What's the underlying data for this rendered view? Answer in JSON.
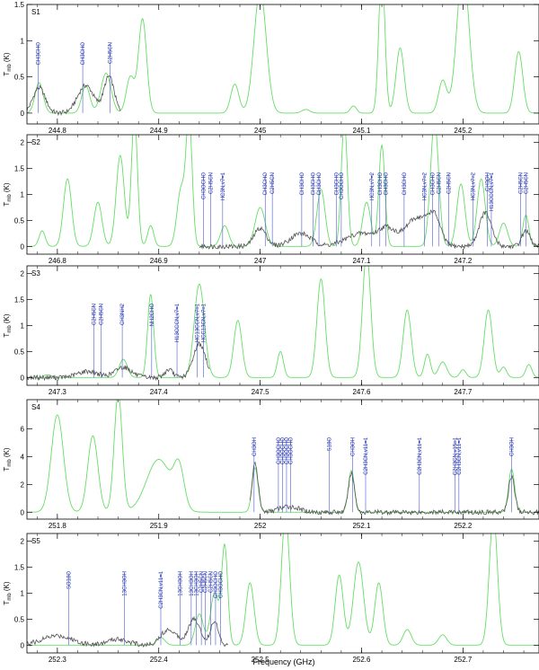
{
  "figure": {
    "xlabel": "Frequency (GHz)",
    "ylabel_main": "T",
    "ylabel_sub": "mb",
    "ylabel_unit": "(K)",
    "colors": {
      "observed": "#555555",
      "model": "#66dd66",
      "line_marker": "#4a5bc8",
      "label": "#2030b0",
      "axis": "#000000"
    }
  },
  "chart_data": [
    {
      "type": "line",
      "panel": "S1",
      "xlim": [
        244.77,
        245.275
      ],
      "ylim": [
        -0.15,
        1.5
      ],
      "xticks": [
        244.8,
        244.9,
        245,
        245.1,
        245.2
      ],
      "xtick_labels": [
        "244.8",
        "244.9",
        "245",
        "245.1",
        "245.2"
      ],
      "yticks": [
        0,
        0.5,
        1,
        1.5
      ],
      "ytick_labels": [
        "0",
        "0.5",
        "1",
        "1.5"
      ],
      "obs_range": [
        244.77,
        244.862
      ],
      "model_peaks": [
        [
          244.782,
          0.42,
          0.004
        ],
        [
          244.828,
          0.38,
          0.004
        ],
        [
          244.848,
          0.55,
          0.005
        ],
        [
          244.872,
          0.5,
          0.004
        ],
        [
          244.884,
          1.3,
          0.004
        ],
        [
          244.975,
          0.4,
          0.004
        ],
        [
          245.0,
          1.7,
          0.006
        ],
        [
          245.045,
          0.05,
          0.004
        ],
        [
          245.092,
          0.1,
          0.003
        ],
        [
          245.12,
          2.0,
          0.003
        ],
        [
          245.138,
          0.9,
          0.004
        ],
        [
          245.18,
          0.45,
          0.004
        ],
        [
          245.2,
          2.0,
          0.006
        ],
        [
          245.255,
          0.85,
          0.004
        ]
      ],
      "obs_peaks": [
        [
          244.782,
          0.35,
          0.006
        ],
        [
          244.828,
          0.38,
          0.008
        ],
        [
          244.851,
          0.5,
          0.005
        ]
      ],
      "lines": [
        {
          "freq": 244.781,
          "label": "CH3CHO"
        },
        {
          "freq": 244.825,
          "label": "CH3CHO"
        },
        {
          "freq": 244.852,
          "label": "C2H5CN"
        }
      ]
    },
    {
      "type": "line",
      "panel": "S2",
      "xlim": [
        246.77,
        247.275
      ],
      "ylim": [
        -0.15,
        2.15
      ],
      "xticks": [
        246.8,
        246.9,
        247,
        247.1,
        247.2
      ],
      "xtick_labels": [
        "246.8",
        "246.9",
        "247",
        "247.1",
        "247.2"
      ],
      "yticks": [
        0,
        0.5,
        1,
        1.5,
        2
      ],
      "ytick_labels": [
        "0",
        "0.5",
        "1",
        "1.5",
        "2"
      ],
      "obs_range": [
        246.94,
        247.275
      ],
      "model_peaks": [
        [
          246.785,
          0.3,
          0.003
        ],
        [
          246.81,
          1.3,
          0.004
        ],
        [
          246.84,
          0.85,
          0.004
        ],
        [
          246.862,
          1.75,
          0.004
        ],
        [
          246.876,
          2.5,
          0.003
        ],
        [
          246.892,
          0.4,
          0.003
        ],
        [
          246.922,
          1.1,
          0.004
        ],
        [
          246.93,
          2.4,
          0.003
        ],
        [
          246.965,
          0.4,
          0.004
        ],
        [
          247.0,
          0.75,
          0.005
        ],
        [
          247.06,
          1.1,
          0.004
        ],
        [
          247.083,
          2.4,
          0.003
        ],
        [
          247.105,
          0.85,
          0.004
        ],
        [
          247.12,
          1.95,
          0.003
        ],
        [
          247.172,
          2.4,
          0.004
        ],
        [
          247.198,
          1.2,
          0.004
        ],
        [
          247.218,
          1.3,
          0.004
        ],
        [
          247.24,
          0.45,
          0.004
        ],
        [
          247.262,
          0.6,
          0.003
        ]
      ],
      "obs_peaks": [
        [
          247.0,
          0.35,
          0.006
        ],
        [
          247.04,
          0.25,
          0.01
        ],
        [
          247.1,
          0.25,
          0.015
        ],
        [
          247.125,
          0.3,
          0.008
        ],
        [
          247.155,
          0.55,
          0.012
        ],
        [
          247.172,
          0.45,
          0.006
        ],
        [
          247.222,
          0.65,
          0.006
        ],
        [
          247.262,
          0.3,
          0.004
        ]
      ],
      "lines": [
        {
          "freq": 246.944,
          "label": "CH3OCHO"
        },
        {
          "freq": 246.951,
          "label": "C2H5CN"
        },
        {
          "freq": 246.963,
          "label": "HC3N,v7=1"
        },
        {
          "freq": 247.005,
          "label": "CH3CHO"
        },
        {
          "freq": 247.012,
          "label": "C2H5CN"
        },
        {
          "freq": 247.041,
          "label": "CH3CHO"
        },
        {
          "freq": 247.052,
          "label": "CH3CHO"
        },
        {
          "freq": 247.058,
          "label": "CH3CHO"
        },
        {
          "freq": 247.075,
          "label": "CH3CHO"
        },
        {
          "freq": 247.08,
          "label": "CH3OCHO"
        },
        {
          "freq": 247.11,
          "label": "HC3N,v7=2"
        },
        {
          "freq": 247.118,
          "label": "CH3CHO"
        },
        {
          "freq": 247.124,
          "label": "CH3CHO"
        },
        {
          "freq": 247.142,
          "label": "CH3CHO"
        },
        {
          "freq": 247.162,
          "label": "HC3N,v7=2"
        },
        {
          "freq": 247.17,
          "label": "CH3CHO"
        },
        {
          "freq": 247.176,
          "label": "C2H5CN"
        },
        {
          "freq": 247.186,
          "label": "C2H5CN"
        },
        {
          "freq": 247.21,
          "label": "HC3N,v7=2"
        },
        {
          "freq": 247.224,
          "label": "CH3OH"
        },
        {
          "freq": 247.228,
          "label": "H13CCCN,v7=1"
        },
        {
          "freq": 247.257,
          "label": "C2H5CN"
        },
        {
          "freq": 247.262,
          "label": "C2H5CN"
        }
      ]
    },
    {
      "type": "line",
      "panel": "S3",
      "xlim": [
        247.27,
        247.775
      ],
      "ylim": [
        -0.15,
        2.15
      ],
      "xticks": [
        247.3,
        247.4,
        247.5,
        247.6,
        247.7
      ],
      "xtick_labels": [
        "247.3",
        "247.4",
        "247.5",
        "247.6",
        "247.7"
      ],
      "yticks": [
        0,
        0.5,
        1,
        1.5,
        2
      ],
      "ytick_labels": [
        "0",
        "0.5",
        "1",
        "1.5",
        "2"
      ],
      "obs_range": [
        247.27,
        247.45
      ],
      "model_peaks": [
        [
          247.29,
          0.05,
          0.004
        ],
        [
          247.365,
          0.35,
          0.004
        ],
        [
          247.392,
          1.6,
          0.003
        ],
        [
          247.44,
          1.8,
          0.005
        ],
        [
          247.478,
          1.1,
          0.004
        ],
        [
          247.52,
          0.5,
          0.003
        ],
        [
          247.56,
          1.9,
          0.004
        ],
        [
          247.605,
          2.4,
          0.004
        ],
        [
          247.645,
          1.3,
          0.004
        ],
        [
          247.665,
          0.45,
          0.003
        ],
        [
          247.68,
          0.3,
          0.004
        ],
        [
          247.7,
          0.15,
          0.003
        ],
        [
          247.725,
          1.3,
          0.004
        ],
        [
          247.74,
          0.2,
          0.003
        ],
        [
          247.765,
          0.25,
          0.003
        ]
      ],
      "obs_peaks": [
        [
          247.33,
          0.12,
          0.01
        ],
        [
          247.365,
          0.2,
          0.008
        ],
        [
          247.41,
          0.15,
          0.004
        ],
        [
          247.44,
          0.65,
          0.006
        ]
      ],
      "lines": [
        {
          "freq": 247.336,
          "label": "C2H5CN"
        },
        {
          "freq": 247.343,
          "label": "C2H5CN"
        },
        {
          "freq": 247.364,
          "label": "CH3NH2"
        },
        {
          "freq": 247.393,
          "label": "NH2CHO"
        },
        {
          "freq": 247.418,
          "label": "H13CCCN,v7=1"
        },
        {
          "freq": 247.438,
          "label": "HC13CCN,v7=1"
        },
        {
          "freq": 247.444,
          "label": "HCC13CN,v7=1"
        }
      ]
    },
    {
      "type": "line",
      "panel": "S4",
      "xlim": [
        251.77,
        252.275
      ],
      "ylim": [
        -0.5,
        8.1
      ],
      "xticks": [
        251.8,
        251.9,
        252,
        252.1,
        252.2
      ],
      "xtick_labels": [
        "251.8",
        "251.9",
        "252",
        "252.1",
        "252.2"
      ],
      "yticks": [
        0,
        2,
        4,
        6
      ],
      "ytick_labels": [
        "0",
        "2",
        "4",
        "6"
      ],
      "obs_range": [
        251.99,
        252.275
      ],
      "model_peaks": [
        [
          251.8,
          7.0,
          0.006
        ],
        [
          251.835,
          5.5,
          0.005
        ],
        [
          251.86,
          8.5,
          0.004
        ],
        [
          251.9,
          3.8,
          0.012
        ],
        [
          251.92,
          2.8,
          0.005
        ],
        [
          251.995,
          3.2,
          0.003
        ],
        [
          252.09,
          3.0,
          0.003
        ],
        [
          252.248,
          3.1,
          0.003
        ]
      ],
      "obs_peaks": [
        [
          251.995,
          3.5,
          0.003
        ],
        [
          252.028,
          0.4,
          0.01
        ],
        [
          252.09,
          2.8,
          0.003
        ],
        [
          252.248,
          2.6,
          0.003
        ]
      ],
      "lines": [
        {
          "freq": 251.994,
          "label": "CH3OH"
        },
        {
          "freq": 252.018,
          "label": "CH3OCHO"
        },
        {
          "freq": 252.022,
          "label": "CH3OCHO"
        },
        {
          "freq": 252.026,
          "label": "CH3OCHO"
        },
        {
          "freq": 252.03,
          "label": "CH3OCHO"
        },
        {
          "freq": 252.068,
          "label": "S18O"
        },
        {
          "freq": 252.091,
          "label": "CH3OH"
        },
        {
          "freq": 252.104,
          "label": "C2H3CN,v11=1"
        },
        {
          "freq": 252.157,
          "label": "C2H3CN,v11=1"
        },
        {
          "freq": 252.192,
          "label": "C2H3CN,v15=1"
        },
        {
          "freq": 252.196,
          "label": "C2H3CN,v11=1"
        },
        {
          "freq": 252.248,
          "label": "CH3OH"
        }
      ]
    },
    {
      "type": "line",
      "panel": "S5",
      "xlim": [
        252.27,
        252.775
      ],
      "ylim": [
        -0.15,
        2.15
      ],
      "xticks": [
        252.3,
        252.4,
        252.5,
        252.6,
        252.7
      ],
      "xtick_labels": [
        "252.3",
        "252.4",
        "252.5",
        "252.6",
        "252.7"
      ],
      "yticks": [
        0,
        0.5,
        1,
        1.5,
        2
      ],
      "ytick_labels": [
        "0",
        "0.5",
        "1",
        "1.5",
        "2"
      ],
      "obs_range": [
        252.27,
        252.468
      ],
      "model_peaks": [
        [
          252.402,
          0.15,
          0.004
        ],
        [
          252.44,
          0.6,
          0.004
        ],
        [
          252.455,
          1.0,
          0.004
        ],
        [
          252.465,
          1.9,
          0.003
        ],
        [
          252.49,
          1.2,
          0.004
        ],
        [
          252.525,
          2.5,
          0.004
        ],
        [
          252.578,
          1.35,
          0.004
        ],
        [
          252.597,
          1.6,
          0.005
        ],
        [
          252.617,
          1.2,
          0.004
        ],
        [
          252.645,
          0.3,
          0.004
        ],
        [
          252.68,
          0.2,
          0.004
        ],
        [
          252.73,
          2.5,
          0.004
        ]
      ],
      "obs_peaks": [
        [
          252.3,
          0.18,
          0.015
        ],
        [
          252.36,
          0.12,
          0.01
        ],
        [
          252.41,
          0.3,
          0.008
        ],
        [
          252.435,
          0.5,
          0.006
        ],
        [
          252.455,
          0.45,
          0.004
        ]
      ],
      "lines": [
        {
          "freq": 252.311,
          "label": "SO18O"
        },
        {
          "freq": 252.366,
          "label": "13CH3OH"
        },
        {
          "freq": 252.402,
          "label": "C2H3CN,v11=1"
        },
        {
          "freq": 252.421,
          "label": "13CH3OH"
        },
        {
          "freq": 252.432,
          "label": "13CH3OH"
        },
        {
          "freq": 252.437,
          "label": "13CH3OH"
        },
        {
          "freq": 252.442,
          "label": "C2H5CN"
        },
        {
          "freq": 252.446,
          "label": "C2H5CN"
        },
        {
          "freq": 252.451,
          "label": "C2H5CN"
        },
        {
          "freq": 252.456,
          "label": "CH3OCHO"
        },
        {
          "freq": 252.461,
          "label": "CH3OCHO"
        }
      ]
    }
  ]
}
